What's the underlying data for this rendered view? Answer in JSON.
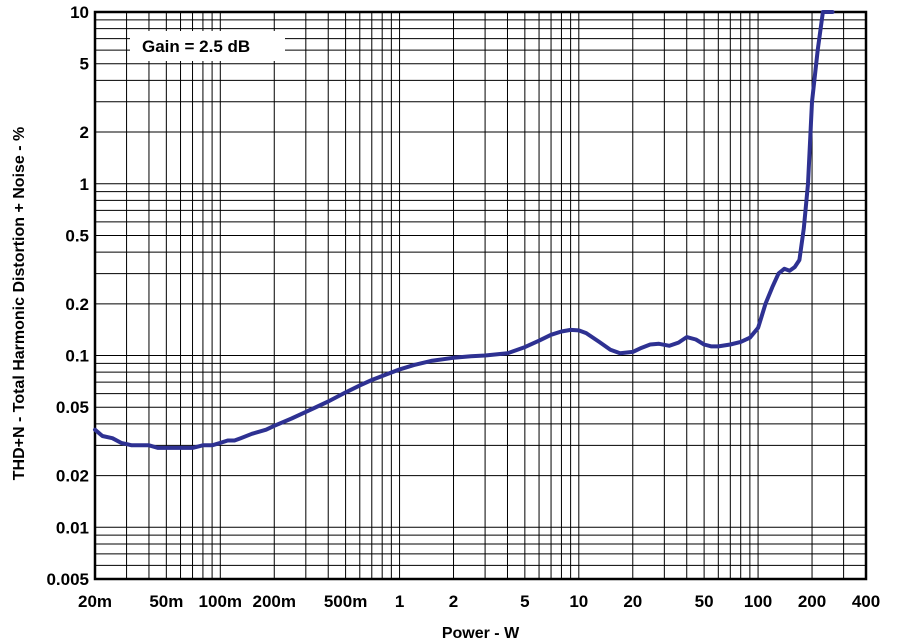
{
  "chart_data": {
    "type": "line",
    "xlabel": "Power - W",
    "ylabel": "THD+N - Total Harmonic Distortion + Noise - %",
    "x_scale": "log",
    "y_scale": "log",
    "xlim": [
      0.02,
      400
    ],
    "ylim": [
      0.005,
      10
    ],
    "grid": true,
    "x_ticks": [
      {
        "value": 0.02,
        "label": "20m"
      },
      {
        "value": 0.05,
        "label": "50m"
      },
      {
        "value": 0.1,
        "label": "100m"
      },
      {
        "value": 0.2,
        "label": "200m"
      },
      {
        "value": 0.5,
        "label": "500m"
      },
      {
        "value": 1,
        "label": "1"
      },
      {
        "value": 2,
        "label": "2"
      },
      {
        "value": 5,
        "label": "5"
      },
      {
        "value": 10,
        "label": "10"
      },
      {
        "value": 20,
        "label": "20"
      },
      {
        "value": 50,
        "label": "50"
      },
      {
        "value": 100,
        "label": "100"
      },
      {
        "value": 200,
        "label": "200"
      },
      {
        "value": 400,
        "label": "400"
      }
    ],
    "y_ticks": [
      {
        "value": 0.005,
        "label": "0.005"
      },
      {
        "value": 0.01,
        "label": "0.01"
      },
      {
        "value": 0.02,
        "label": "0.02"
      },
      {
        "value": 0.05,
        "label": "0.05"
      },
      {
        "value": 0.1,
        "label": "0.1"
      },
      {
        "value": 0.2,
        "label": "0.2"
      },
      {
        "value": 0.5,
        "label": "0.5"
      },
      {
        "value": 1,
        "label": "1"
      },
      {
        "value": 2,
        "label": "2"
      },
      {
        "value": 5,
        "label": "5"
      },
      {
        "value": 10,
        "label": "10"
      }
    ],
    "annotation": "Gain = 2.5 dB",
    "line_color": "#2e3192",
    "series": [
      {
        "x": [
          0.02,
          0.022,
          0.025,
          0.028,
          0.032,
          0.036,
          0.04,
          0.045,
          0.05,
          0.055,
          0.06,
          0.07,
          0.08,
          0.09,
          0.1,
          0.11,
          0.12,
          0.13,
          0.15,
          0.18,
          0.2,
          0.25,
          0.3,
          0.4,
          0.5,
          0.6,
          0.7,
          0.8,
          1.0,
          1.2,
          1.5,
          2.0,
          2.5,
          3.0,
          4.0,
          5.0,
          6.0,
          7.0,
          8.0,
          9.0,
          10,
          11,
          13,
          15,
          17,
          20,
          22,
          25,
          28,
          32,
          36,
          40,
          45,
          50,
          55,
          60,
          70,
          80,
          90,
          100,
          110,
          120,
          130,
          140,
          150,
          160,
          170,
          180,
          190,
          200,
          215,
          230,
          245,
          260
        ],
        "y": [
          0.037,
          0.034,
          0.033,
          0.031,
          0.03,
          0.03,
          0.03,
          0.029,
          0.029,
          0.029,
          0.029,
          0.029,
          0.03,
          0.03,
          0.031,
          0.032,
          0.032,
          0.033,
          0.035,
          0.037,
          0.039,
          0.043,
          0.047,
          0.054,
          0.061,
          0.067,
          0.072,
          0.076,
          0.083,
          0.088,
          0.093,
          0.097,
          0.099,
          0.1,
          0.103,
          0.112,
          0.122,
          0.132,
          0.138,
          0.141,
          0.14,
          0.135,
          0.12,
          0.108,
          0.103,
          0.105,
          0.11,
          0.116,
          0.117,
          0.114,
          0.119,
          0.128,
          0.124,
          0.116,
          0.113,
          0.113,
          0.116,
          0.12,
          0.127,
          0.145,
          0.2,
          0.25,
          0.3,
          0.32,
          0.312,
          0.327,
          0.36,
          0.55,
          1.0,
          3.0,
          6.0,
          10.0,
          10.0,
          10.0
        ]
      }
    ]
  }
}
